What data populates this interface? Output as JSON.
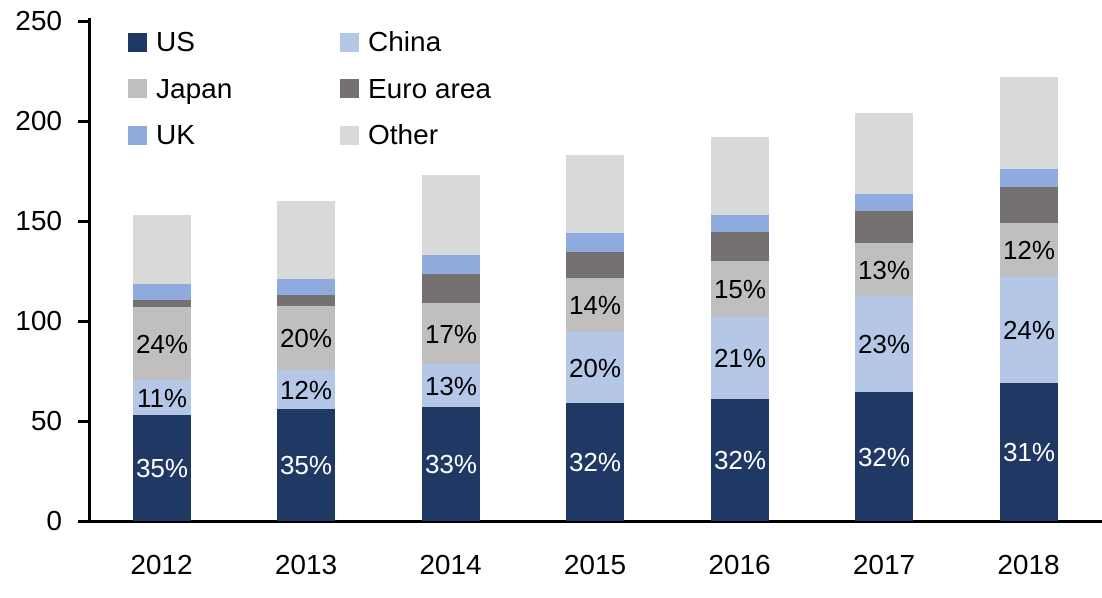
{
  "chart_data": {
    "type": "bar",
    "stacked": true,
    "title": "",
    "xlabel": "",
    "ylabel": "",
    "categories": [
      "2012",
      "2013",
      "2014",
      "2015",
      "2016",
      "2017",
      "2018"
    ],
    "series": [
      {
        "name": "US",
        "color": "#1F3864",
        "label_color": "#FFFFFF",
        "values": [
          53,
          56,
          57,
          59,
          61,
          64.5,
          69
        ],
        "labels": [
          "35%",
          "35%",
          "33%",
          "32%",
          "32%",
          "32%",
          "31%"
        ]
      },
      {
        "name": "China",
        "color": "#B4C7E7",
        "label_color": "#000000",
        "values": [
          17.5,
          19.5,
          21.5,
          35.5,
          41,
          48,
          53
        ],
        "labels": [
          "11%",
          "12%",
          "13%",
          "20%",
          "21%",
          "23%",
          "24%"
        ]
      },
      {
        "name": "Japan",
        "color": "#BFBFBF",
        "label_color": "#000000",
        "values": [
          36.5,
          32,
          30.5,
          27,
          28,
          26.5,
          27
        ],
        "labels": [
          "24%",
          "20%",
          "17%",
          "14%",
          "15%",
          "13%",
          "12%"
        ]
      },
      {
        "name": "Euro area",
        "color": "#767171",
        "label_color": "#000000",
        "values": [
          3.5,
          5.5,
          14.5,
          13,
          14.5,
          16,
          18
        ],
        "labels": null
      },
      {
        "name": "UK",
        "color": "#8FAADC",
        "label_color": "#000000",
        "values": [
          8,
          8,
          9.5,
          9.5,
          8.5,
          8.5,
          9
        ],
        "labels": null
      },
      {
        "name": "Other",
        "color": "#D9D9D9",
        "label_color": "#000000",
        "values": [
          34.5,
          39,
          40,
          39,
          39,
          40.5,
          46
        ],
        "labels": null
      }
    ],
    "totals_approx": [
      153,
      160,
      173.5,
      183,
      192,
      204,
      222
    ],
    "ylim": [
      0,
      250
    ],
    "yticks": [
      0,
      50,
      100,
      150,
      200,
      250
    ],
    "grid": false,
    "legend_position": "top-left",
    "legend_columns": 2,
    "legend_order": [
      "US",
      "China",
      "Japan",
      "Euro area",
      "UK",
      "Other"
    ],
    "axis_color": "#000000",
    "text_color": "#000000",
    "background_color": "#FFFFFF"
  }
}
